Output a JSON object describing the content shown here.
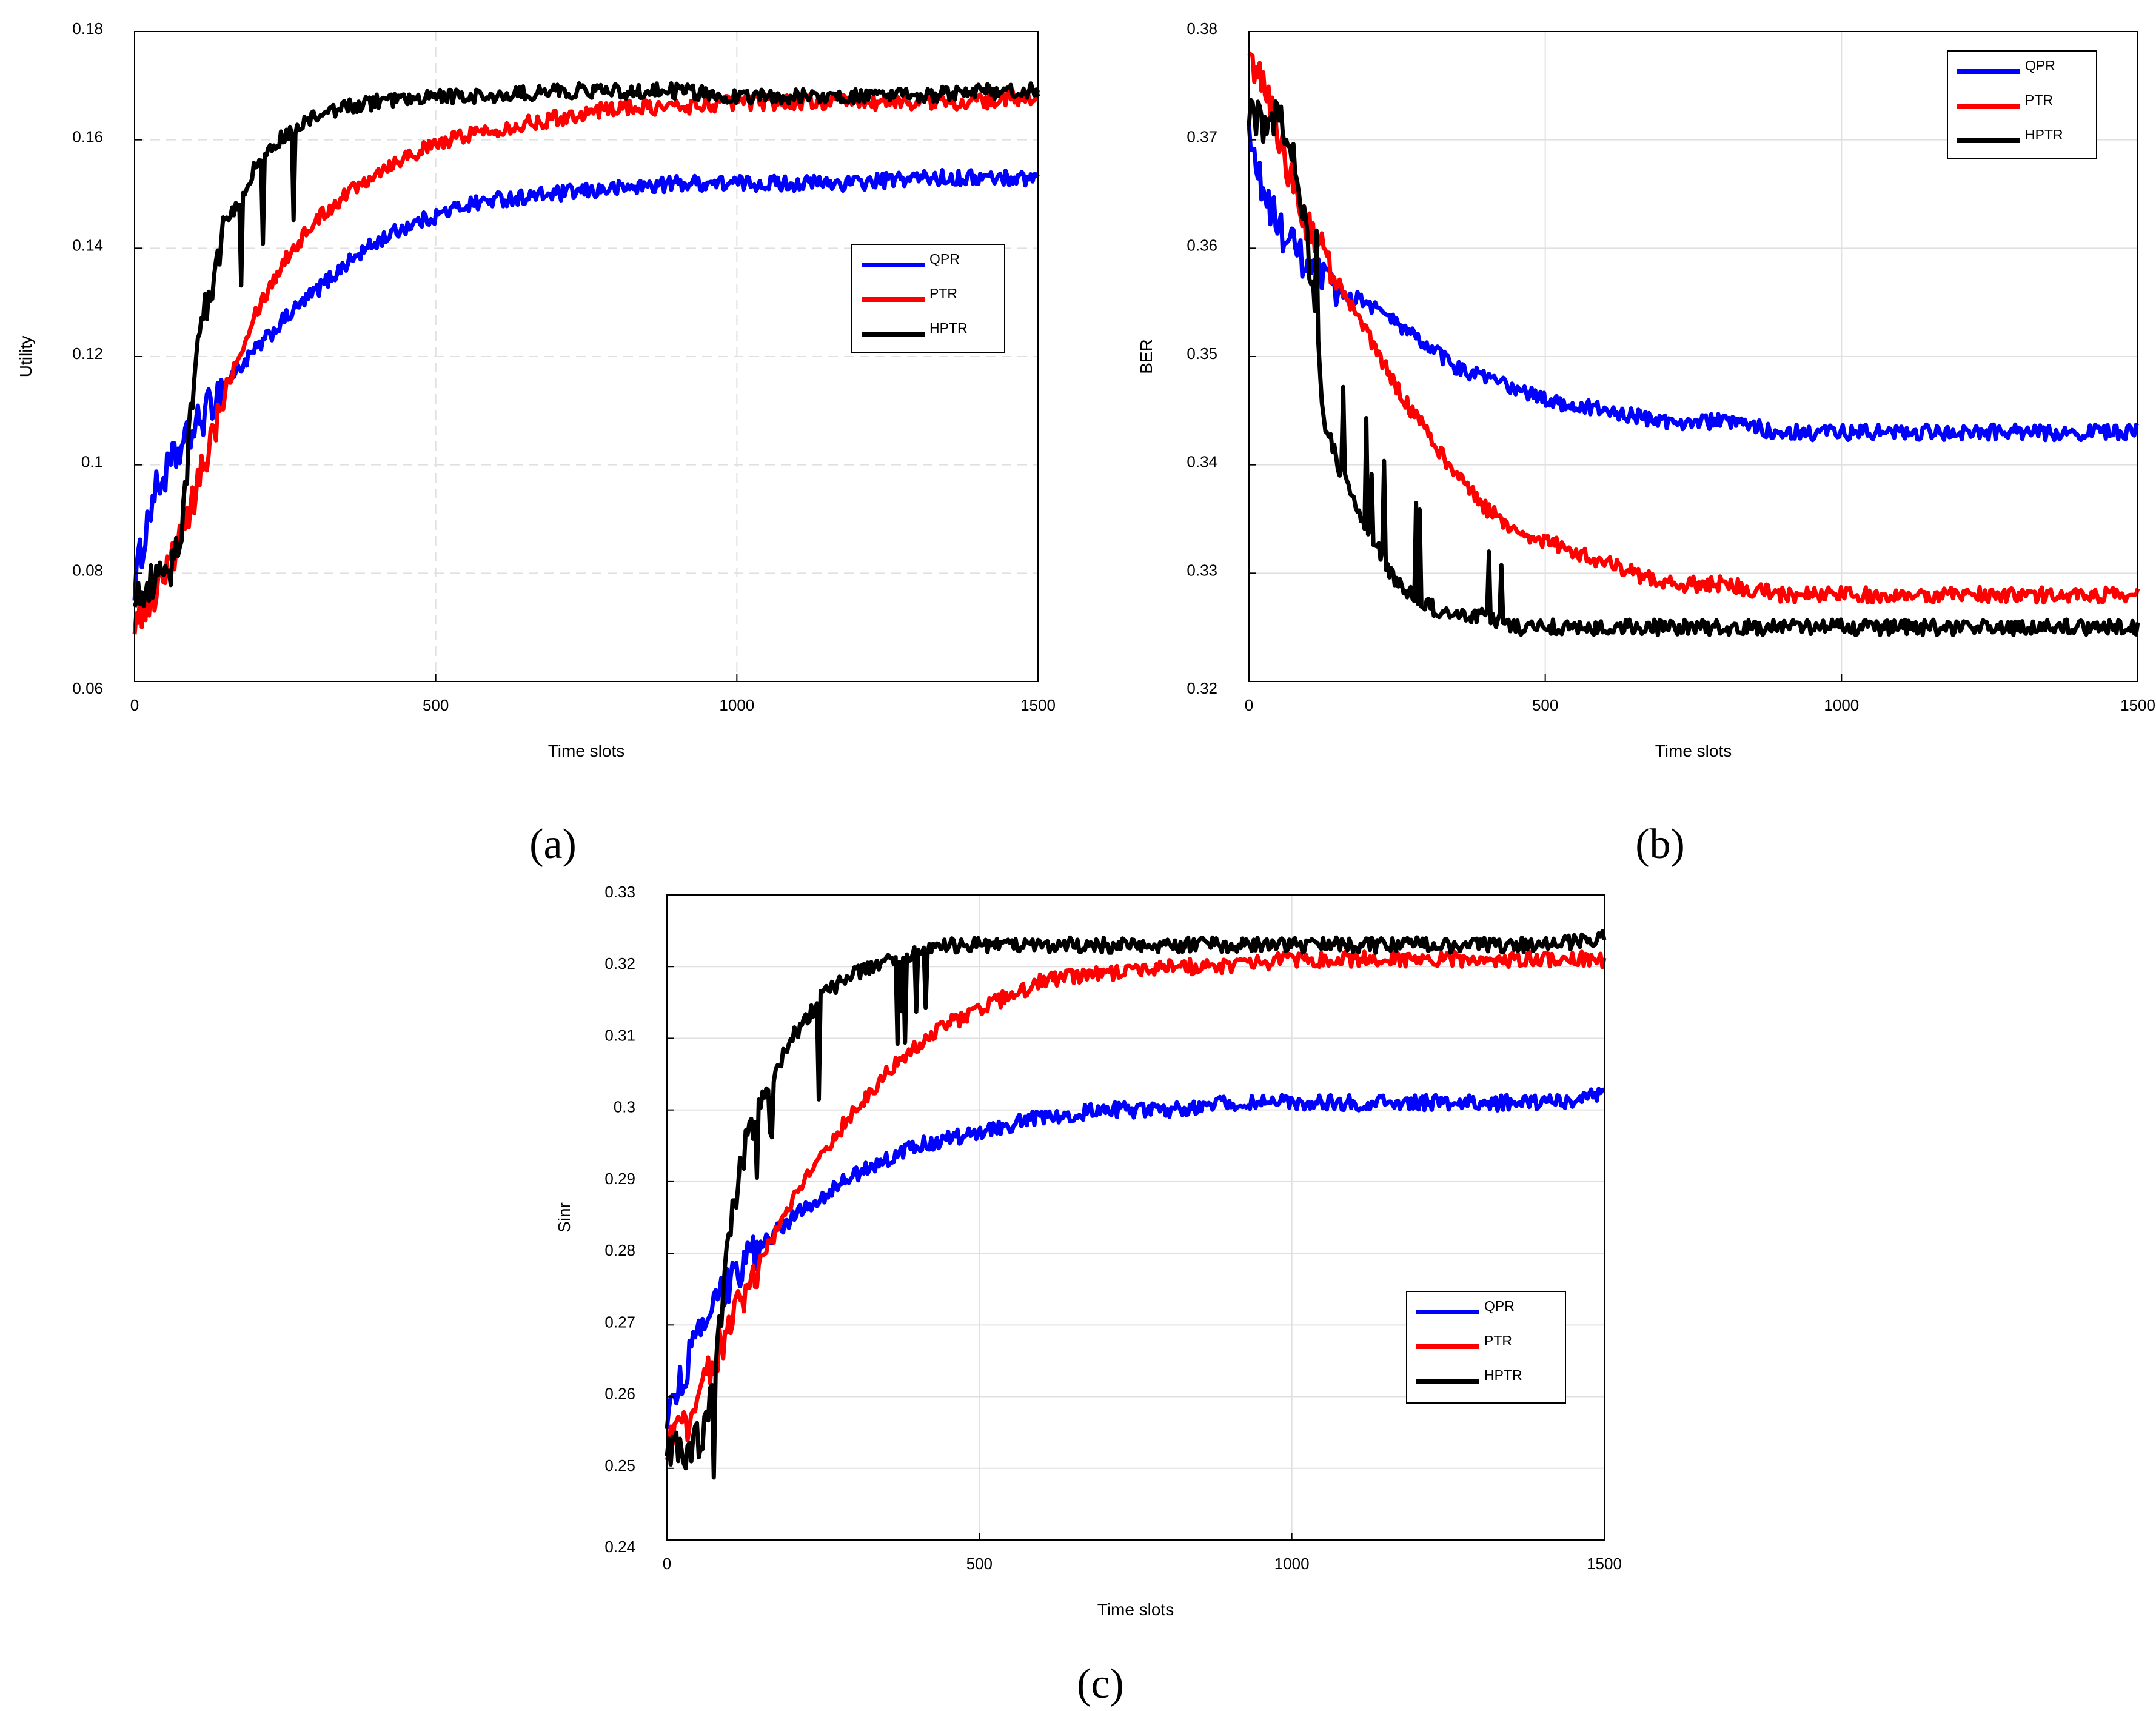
{
  "chart_data": [
    {
      "type": "line",
      "panel_label": "(a)",
      "xlabel": "Time slots",
      "ylabel": "Utility",
      "xlim": [
        0,
        1500
      ],
      "ylim": [
        0.06,
        0.18
      ],
      "xticks": [
        0,
        500,
        1000,
        1500
      ],
      "xtick_labels": [
        "0",
        "500",
        "1000",
        "1500"
      ],
      "yticks": [
        0.06,
        0.08,
        0.1,
        0.12,
        0.14,
        0.16,
        0.18
      ],
      "ytick_labels": [
        "0.06",
        "0.08",
        "0.1",
        "0.12",
        "0.14",
        "0.16",
        "0.18"
      ],
      "grid": true,
      "legend_position": "center-right",
      "series": [
        {
          "name": "QPR",
          "color": "#0000ff",
          "x": [
            0,
            30,
            60,
            90,
            120,
            150,
            200,
            250,
            300,
            350,
            400,
            450,
            500,
            550,
            600,
            700,
            800,
            900,
            1000,
            1100,
            1200,
            1300,
            1400,
            1500
          ],
          "values": [
            0.078,
            0.094,
            0.1,
            0.105,
            0.11,
            0.115,
            0.121,
            0.127,
            0.132,
            0.137,
            0.141,
            0.144,
            0.146,
            0.148,
            0.149,
            0.15,
            0.151,
            0.152,
            0.152,
            0.152,
            0.152,
            0.153,
            0.153,
            0.153
          ]
        },
        {
          "name": "PTR",
          "color": "#ff0000",
          "x": [
            0,
            30,
            60,
            90,
            120,
            150,
            200,
            250,
            300,
            350,
            400,
            450,
            500,
            550,
            600,
            700,
            800,
            900,
            1000,
            1100,
            1200,
            1300,
            1400,
            1500
          ],
          "values": [
            0.072,
            0.076,
            0.082,
            0.09,
            0.102,
            0.114,
            0.128,
            0.138,
            0.145,
            0.15,
            0.154,
            0.157,
            0.159,
            0.161,
            0.162,
            0.164,
            0.166,
            0.166,
            0.167,
            0.167,
            0.167,
            0.167,
            0.167,
            0.168
          ]
        },
        {
          "name": "HPTR",
          "color": "#000000",
          "x": [
            0,
            30,
            60,
            80,
            100,
            120,
            150,
            200,
            250,
            300,
            350,
            400,
            450,
            500,
            600,
            700,
            800,
            900,
            1000,
            1100,
            1200,
            1300,
            1400,
            1500
          ],
          "values": [
            0.077,
            0.078,
            0.08,
            0.09,
            0.118,
            0.13,
            0.144,
            0.155,
            0.161,
            0.164,
            0.166,
            0.167,
            0.167,
            0.168,
            0.168,
            0.169,
            0.169,
            0.169,
            0.168,
            0.168,
            0.168,
            0.168,
            0.169,
            0.169
          ]
        }
      ]
    },
    {
      "type": "line",
      "panel_label": "(b)",
      "xlabel": "Time slots",
      "ylabel": "BER",
      "xlim": [
        0,
        1500
      ],
      "ylim": [
        0.32,
        0.38
      ],
      "xticks": [
        0,
        500,
        1000,
        1500
      ],
      "xtick_labels": [
        "0",
        "500",
        "1000",
        "1500"
      ],
      "yticks": [
        0.32,
        0.33,
        0.34,
        0.35,
        0.36,
        0.37,
        0.38
      ],
      "ytick_labels": [
        "0.32",
        "0.33",
        "0.34",
        "0.35",
        "0.36",
        "0.37",
        "0.38"
      ],
      "grid": true,
      "legend_position": "top-right",
      "series": [
        {
          "name": "QPR",
          "color": "#0000ff",
          "x": [
            0,
            25,
            50,
            100,
            150,
            200,
            250,
            300,
            350,
            400,
            450,
            500,
            600,
            700,
            800,
            900,
            1000,
            1100,
            1200,
            1300,
            1400,
            1500
          ],
          "values": [
            0.37,
            0.365,
            0.362,
            0.358,
            0.356,
            0.355,
            0.353,
            0.351,
            0.349,
            0.348,
            0.347,
            0.346,
            0.345,
            0.344,
            0.344,
            0.343,
            0.343,
            0.343,
            0.343,
            0.343,
            0.343,
            0.343
          ]
        },
        {
          "name": "PTR",
          "color": "#ff0000",
          "x": [
            0,
            25,
            50,
            100,
            150,
            200,
            250,
            300,
            350,
            400,
            450,
            500,
            600,
            700,
            800,
            900,
            1000,
            1100,
            1200,
            1300,
            1400,
            1500
          ],
          "values": [
            0.377,
            0.376,
            0.37,
            0.362,
            0.357,
            0.352,
            0.347,
            0.343,
            0.339,
            0.336,
            0.334,
            0.333,
            0.331,
            0.329,
            0.329,
            0.328,
            0.328,
            0.328,
            0.328,
            0.328,
            0.328,
            0.328
          ]
        },
        {
          "name": "HPTR",
          "color": "#000000",
          "x": [
            0,
            25,
            50,
            75,
            100,
            125,
            150,
            200,
            250,
            300,
            350,
            400,
            450,
            500,
            600,
            700,
            800,
            900,
            1000,
            1100,
            1200,
            1300,
            1400,
            1500
          ],
          "values": [
            0.373,
            0.371,
            0.372,
            0.368,
            0.36,
            0.345,
            0.34,
            0.334,
            0.329,
            0.327,
            0.326,
            0.326,
            0.325,
            0.325,
            0.325,
            0.325,
            0.325,
            0.325,
            0.325,
            0.325,
            0.325,
            0.325,
            0.325,
            0.325
          ]
        }
      ]
    },
    {
      "type": "line",
      "panel_label": "(c)",
      "xlabel": "Time slots",
      "ylabel": "Sinr",
      "xlim": [
        0,
        1500
      ],
      "ylim": [
        0.24,
        0.33
      ],
      "xticks": [
        0,
        500,
        1000,
        1500
      ],
      "xtick_labels": [
        "0",
        "500",
        "1000",
        "1500"
      ],
      "yticks": [
        0.24,
        0.25,
        0.26,
        0.27,
        0.28,
        0.29,
        0.3,
        0.31,
        0.32,
        0.33
      ],
      "ytick_labels": [
        "0.24",
        "0.25",
        "0.26",
        "0.27",
        "0.28",
        "0.29",
        "0.3",
        "0.31",
        "0.32",
        "0.33"
      ],
      "grid": true,
      "legend_position": "lower-right",
      "series": [
        {
          "name": "QPR",
          "color": "#0000ff",
          "x": [
            0,
            30,
            60,
            100,
            150,
            200,
            250,
            300,
            350,
            400,
            450,
            500,
            550,
            600,
            700,
            800,
            900,
            1000,
            1100,
            1200,
            1300,
            1400,
            1500
          ],
          "values": [
            0.257,
            0.264,
            0.27,
            0.276,
            0.281,
            0.285,
            0.288,
            0.291,
            0.293,
            0.295,
            0.296,
            0.297,
            0.298,
            0.299,
            0.3,
            0.3,
            0.301,
            0.301,
            0.301,
            0.301,
            0.301,
            0.301,
            0.302
          ]
        },
        {
          "name": "PTR",
          "color": "#ff0000",
          "x": [
            0,
            30,
            60,
            100,
            150,
            200,
            250,
            300,
            350,
            400,
            450,
            500,
            550,
            600,
            700,
            800,
            900,
            1000,
            1100,
            1200,
            1300,
            1400,
            1500
          ],
          "values": [
            0.253,
            0.256,
            0.262,
            0.27,
            0.279,
            0.287,
            0.294,
            0.3,
            0.305,
            0.309,
            0.312,
            0.314,
            0.316,
            0.318,
            0.319,
            0.32,
            0.32,
            0.321,
            0.321,
            0.321,
            0.321,
            0.321,
            0.321
          ]
        },
        {
          "name": "HPTR",
          "color": "#000000",
          "x": [
            0,
            30,
            60,
            80,
            100,
            130,
            160,
            200,
            250,
            300,
            350,
            400,
            450,
            500,
            600,
            700,
            800,
            900,
            1000,
            1100,
            1200,
            1300,
            1400,
            1500
          ],
          "values": [
            0.253,
            0.252,
            0.255,
            0.265,
            0.283,
            0.297,
            0.303,
            0.31,
            0.316,
            0.319,
            0.321,
            0.322,
            0.323,
            0.323,
            0.323,
            0.323,
            0.323,
            0.323,
            0.323,
            0.323,
            0.323,
            0.323,
            0.323,
            0.324
          ]
        }
      ]
    }
  ]
}
